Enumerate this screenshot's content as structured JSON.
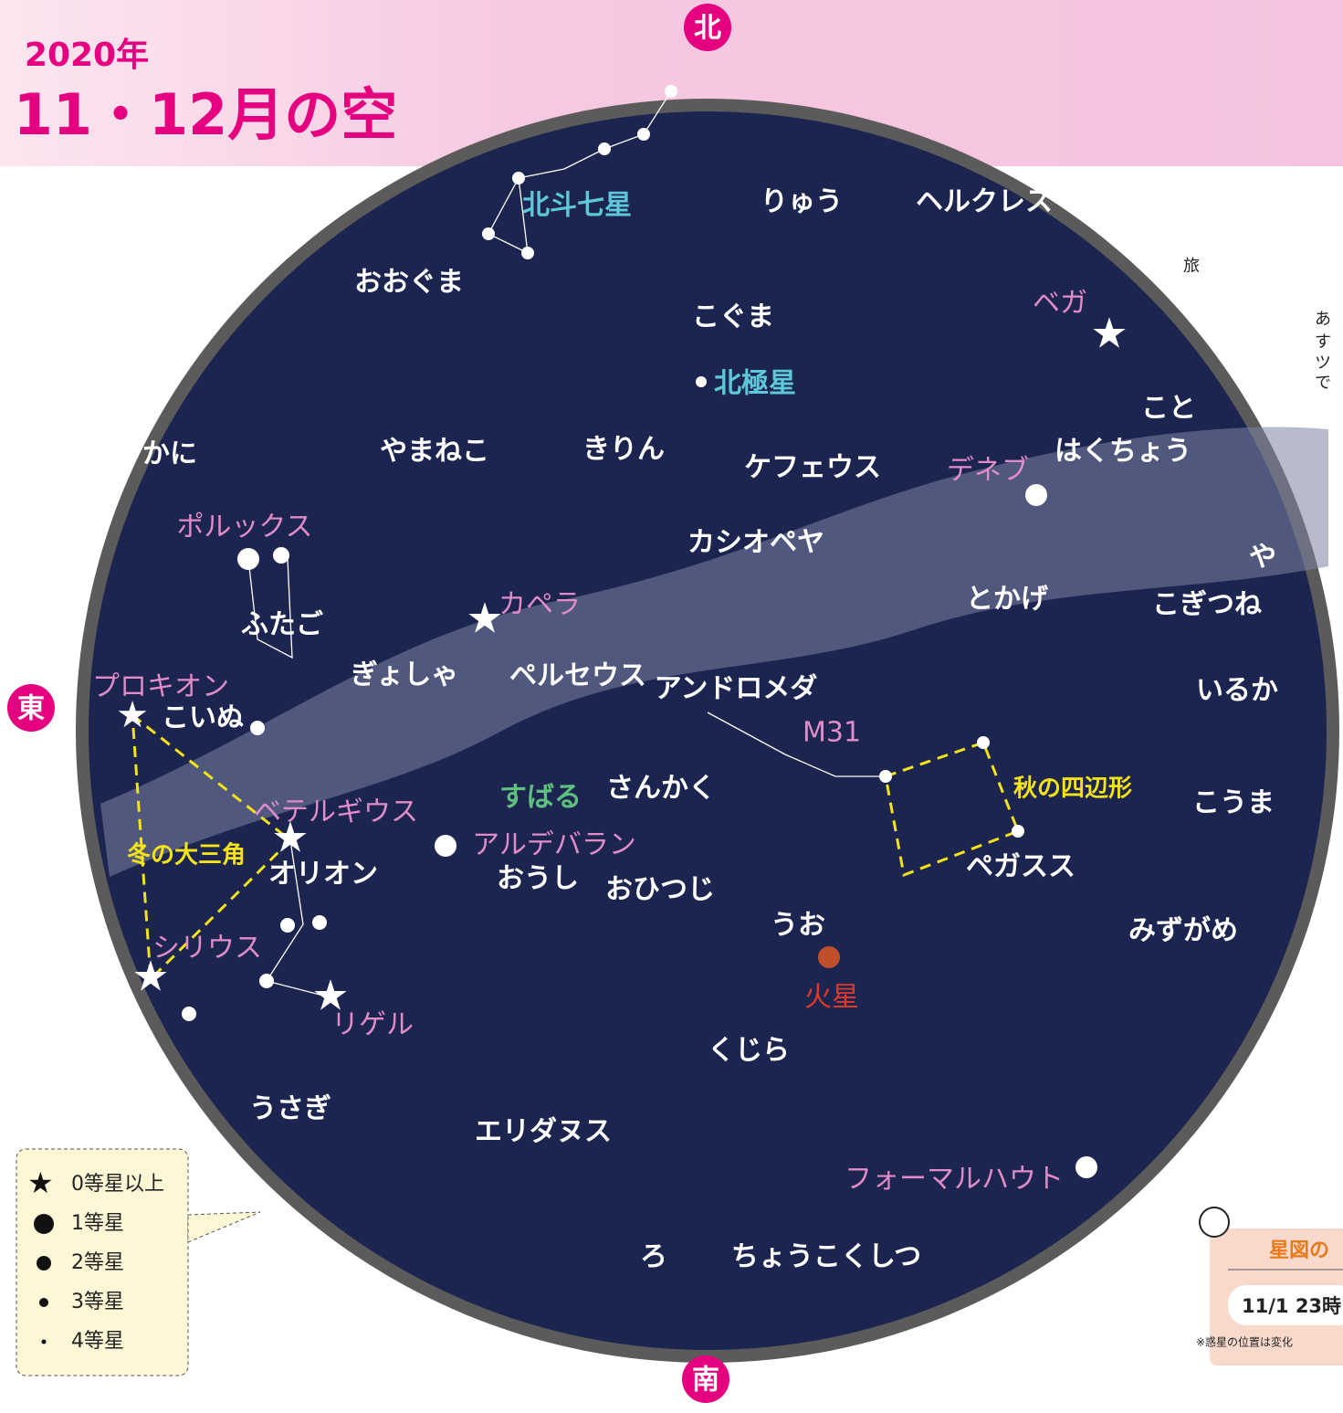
{
  "header": {
    "year": "2020年",
    "title": "11・12月の空"
  },
  "directions": {
    "north": "北",
    "east": "東",
    "south": "南"
  },
  "constellations": [
    "おおぐま",
    "りゅう",
    "ヘルクレス",
    "こぐま",
    "こと",
    "やまねこ",
    "きりん",
    "ケフェウス",
    "はくちょう",
    "かに",
    "カシオペヤ",
    "や",
    "ふたご",
    "とかげ",
    "こぎつね",
    "ぎょしゃ",
    "ペルセウス",
    "アンドロメダ",
    "いるか",
    "こいぬ",
    "さんかく",
    "こうま",
    "オリオン",
    "おうし",
    "おひつじ",
    "ペガスス",
    "うお",
    "みずがめ",
    "くじら",
    "うさぎ",
    "エリダヌス",
    "ろ",
    "ちょうこくしつ"
  ],
  "asterisms_cyan": [
    "北斗七星",
    "北極星"
  ],
  "star_names": [
    "ベガ",
    "デネブ",
    "ポルックス",
    "カペラ",
    "プロキオン",
    "ベテルギウス",
    "アルデバラン",
    "シリウス",
    "リゲル",
    "フォーマルハウト",
    "M31"
  ],
  "cluster": "すばる",
  "asterisms_yellow": [
    "秋の四辺形",
    "冬の大三角"
  ],
  "planet": "火星",
  "legend": [
    "0等星以上",
    "1等星",
    "2等星",
    "3等星",
    "4等星"
  ],
  "side_text": [
    "旅",
    "あ",
    "す",
    "ツ",
    "で"
  ],
  "time_box": {
    "title": "星図の",
    "time": "11/1 23時",
    "note": "※惑星の位置は変化"
  }
}
